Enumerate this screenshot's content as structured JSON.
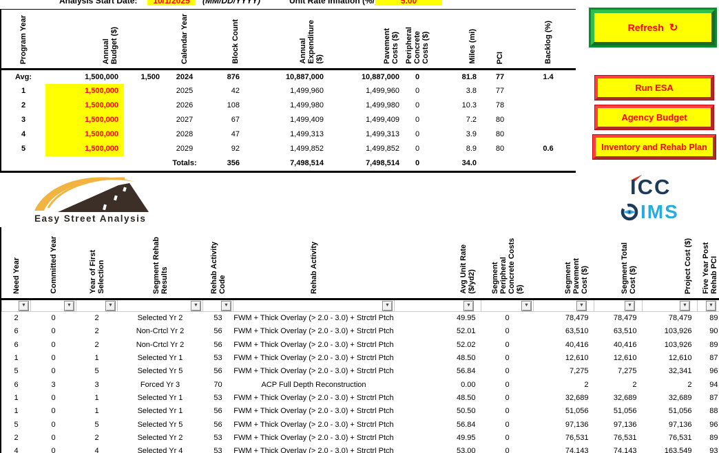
{
  "form": {
    "start_date_label": "Analysis Start Date:",
    "start_date_value": "10/1/2025",
    "date_format_hint": "(MM/DD/YYYY)",
    "inflation_label": "Unit Rate Inflation (%/yr):",
    "inflation_value": "5.00"
  },
  "buttons": {
    "refresh": "Refresh",
    "run_esa": "Run ESA",
    "agency_budget": "Agency Budget",
    "inventory": "Inventory and Rehab Plan"
  },
  "icons": {
    "refresh": "↻",
    "filter": "▼"
  },
  "colors": {
    "highlight_yellow": "#FFFF00",
    "alert_red": "#FF0000",
    "button_green": "#0D8A33",
    "icc_navy": "#1B3A5C",
    "ims_cyan": "#29ABE2",
    "logo_gold": "#F2B440",
    "logo_road": "#3B2F28"
  },
  "summary": {
    "headers": [
      "Program Year",
      "Annual\nBudget ($)",
      "",
      "Calendar Year",
      "Block Count",
      "Annual\nExpenditure\n($)",
      "Pavement\nCosts ($)",
      "Peripheral\nConcrete\nCosts ($)",
      "Miles (mi)",
      "PCI",
      "Backlog (%)"
    ],
    "rows": [
      {
        "type": "avg",
        "cells": [
          "Avg:",
          "1,500,000",
          "1,500",
          "2024",
          "876",
          "10,887,000",
          "10,887,000",
          "0",
          "81.8",
          "77",
          "1.4"
        ]
      },
      {
        "type": "year",
        "cells": [
          "1",
          "1,500,000",
          "",
          "2025",
          "42",
          "1,499,960",
          "1,499,960",
          "0",
          "3.8",
          "77",
          ""
        ]
      },
      {
        "type": "year",
        "cells": [
          "2",
          "1,500,000",
          "",
          "2026",
          "108",
          "1,499,980",
          "1,499,980",
          "0",
          "10.3",
          "78",
          ""
        ]
      },
      {
        "type": "year",
        "cells": [
          "3",
          "1,500,000",
          "",
          "2027",
          "67",
          "1,499,409",
          "1,499,409",
          "0",
          "7.2",
          "80",
          ""
        ]
      },
      {
        "type": "year",
        "cells": [
          "4",
          "1,500,000",
          "",
          "2028",
          "47",
          "1,499,313",
          "1,499,313",
          "0",
          "3.9",
          "80",
          ""
        ]
      },
      {
        "type": "year",
        "cells": [
          "5",
          "1,500,000",
          "",
          "2029",
          "92",
          "1,499,852",
          "1,499,852",
          "0",
          "8.9",
          "80",
          "0.6"
        ]
      },
      {
        "type": "totals",
        "cells": [
          "",
          "",
          "",
          "Totals:",
          "356",
          "7,498,514",
          "7,498,514",
          "0",
          "34.0",
          "",
          ""
        ]
      }
    ]
  },
  "logos": {
    "easy_street_text": "Easy Street Analysis",
    "icc_text": "ICC",
    "ims_text": "IMS"
  },
  "detail": {
    "headers": [
      "Need Year",
      "Committed Year",
      "Year of First\nSelection",
      "Segment Rehab\nResults",
      "Rehab Activity\nCode",
      "Rehab Activity",
      "Avg Unit Rate\n($/yd2)",
      "Segment Peripheral\nConcrete Costs ($)",
      "Segment Pavement\nCost ($)",
      "Segment Total\nCost ($)",
      "Project Cost ($)",
      "Five Year Post\nRehab PCI"
    ],
    "rows": [
      [
        "2",
        "0",
        "2",
        "Selected Yr 2",
        "53",
        "FWM + Thick Overlay (> 2.0 - 3.0) + Strctrl Ptch",
        "49.95",
        "0",
        "78,479",
        "78,479",
        "78,479",
        "89"
      ],
      [
        "6",
        "0",
        "2",
        "Non-Crtcl Yr 2",
        "56",
        "FWM + Thick Overlay (> 2.0 - 3.0) + Strctrl Ptch",
        "52.01",
        "0",
        "63,510",
        "63,510",
        "103,926",
        "90"
      ],
      [
        "6",
        "0",
        "2",
        "Non-Crtcl Yr 2",
        "56",
        "FWM + Thick Overlay (> 2.0 - 3.0) + Strctrl Ptch",
        "52.02",
        "0",
        "40,416",
        "40,416",
        "103,926",
        "89"
      ],
      [
        "1",
        "0",
        "1",
        "Selected Yr 1",
        "53",
        "FWM + Thick Overlay (> 2.0 - 3.0) + Strctrl Ptch",
        "48.50",
        "0",
        "12,610",
        "12,610",
        "12,610",
        "87"
      ],
      [
        "5",
        "0",
        "5",
        "Selected Yr 5",
        "56",
        "FWM + Thick Overlay (> 2.0 - 3.0) + Strctrl Ptch",
        "56.84",
        "0",
        "7,275",
        "7,275",
        "32,341",
        "96"
      ],
      [
        "6",
        "3",
        "3",
        "Forced Yr 3",
        "70",
        "ACP Full Depth Reconstruction",
        "0.00",
        "0",
        "2",
        "2",
        "2",
        "94"
      ],
      [
        "1",
        "0",
        "1",
        "Selected Yr 1",
        "53",
        "FWM + Thick Overlay (> 2.0 - 3.0) + Strctrl Ptch",
        "48.50",
        "0",
        "32,689",
        "32,689",
        "32,689",
        "87"
      ],
      [
        "1",
        "0",
        "1",
        "Selected Yr 1",
        "56",
        "FWM + Thick Overlay (> 2.0 - 3.0) + Strctrl Ptch",
        "50.50",
        "0",
        "51,056",
        "51,056",
        "51,056",
        "88"
      ],
      [
        "5",
        "0",
        "5",
        "Selected Yr 5",
        "56",
        "FWM + Thick Overlay (> 2.0 - 3.0) + Strctrl Ptch",
        "56.84",
        "0",
        "97,136",
        "97,136",
        "97,136",
        "96"
      ],
      [
        "2",
        "0",
        "2",
        "Selected Yr 2",
        "53",
        "FWM + Thick Overlay (> 2.0 - 3.0) + Strctrl Ptch",
        "49.95",
        "0",
        "76,531",
        "76,531",
        "76,531",
        "89"
      ],
      [
        "4",
        "0",
        "4",
        "Selected Yr 4",
        "53",
        "FWM + Thick Overlay (> 2.0 - 3.0) + Strctrl Ptch",
        "53.00",
        "0",
        "74,143",
        "74,143",
        "163,549",
        "93"
      ]
    ]
  }
}
